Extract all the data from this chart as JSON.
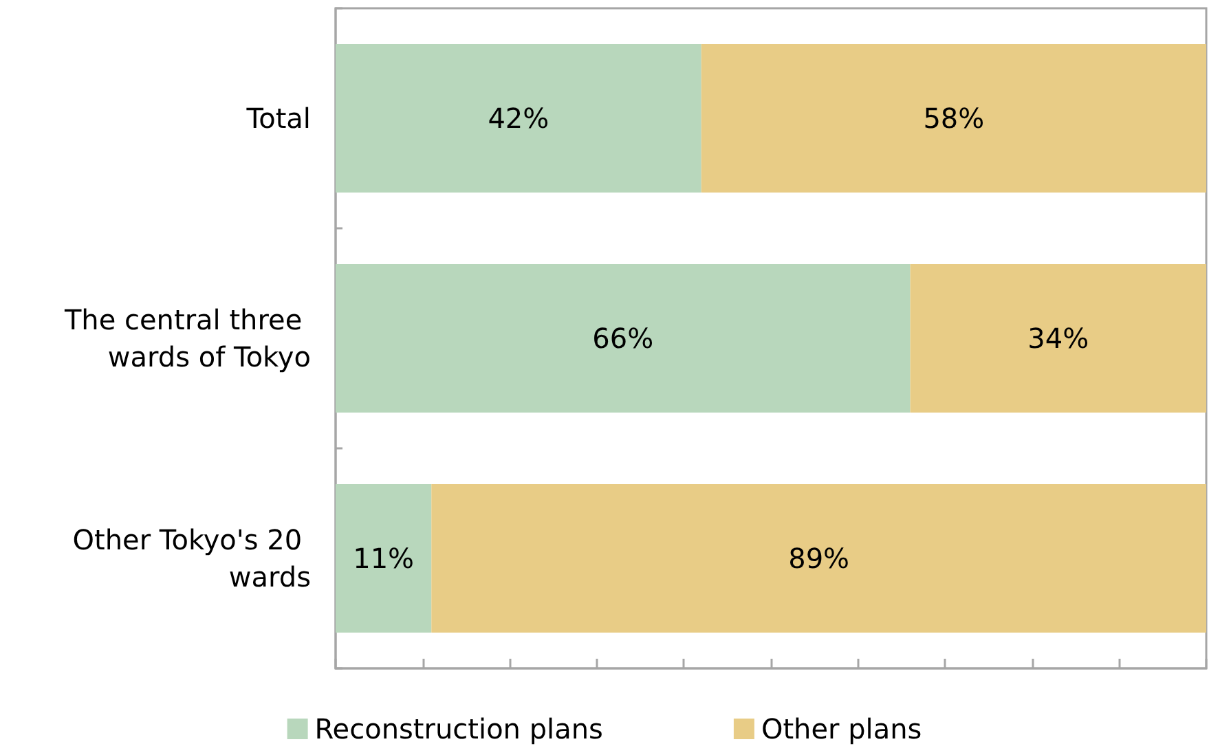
{
  "chart_data": {
    "type": "bar",
    "orientation": "horizontal",
    "stacked": true,
    "categories": [
      "Total",
      "The central three wards of Tokyo",
      "Other Tokyo's 20 wards"
    ],
    "series": [
      {
        "name": "Reconstruction plans",
        "color": "#b8d7bc",
        "values": [
          42,
          66,
          11
        ],
        "value_labels": [
          "42%",
          "66%",
          "11%"
        ]
      },
      {
        "name": "Other plans",
        "color": "#e8cc86",
        "values": [
          58,
          34,
          89
        ],
        "value_labels": [
          "58%",
          "34%",
          "89%"
        ]
      }
    ],
    "xlim": [
      0,
      100
    ],
    "xticks": [
      {
        "value": 0,
        "label": null
      },
      {
        "value": 10,
        "label": null
      },
      {
        "value": 20,
        "label": null
      },
      {
        "value": 30,
        "label": null
      },
      {
        "value": 40,
        "label": null
      },
      {
        "value": 50,
        "label": null
      },
      {
        "value": 60,
        "label": null
      },
      {
        "value": 70,
        "label": null
      },
      {
        "value": 80,
        "label": null
      },
      {
        "value": 90,
        "label": null
      },
      {
        "value": 100,
        "label": null
      }
    ],
    "tick_labels": "y",
    "legend": "bottom"
  }
}
